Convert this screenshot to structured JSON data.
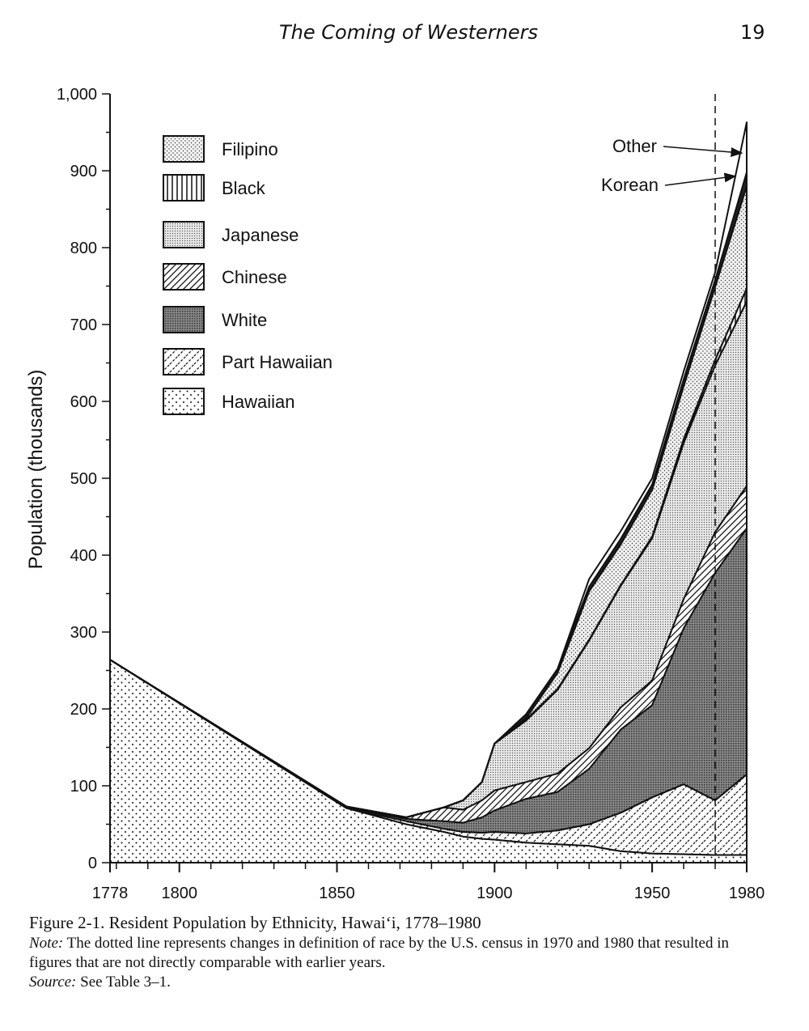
{
  "page": {
    "running_title": "The Coming of Westerners",
    "page_number": "19"
  },
  "chart_data": {
    "type": "area",
    "ylabel": "Population (thousands)",
    "ylim": [
      0,
      1000
    ],
    "yticks": [
      0,
      100,
      200,
      300,
      400,
      500,
      600,
      700,
      800,
      900,
      1000
    ],
    "ytick_labels": [
      "0",
      "100",
      "200",
      "300",
      "400",
      "500",
      "600",
      "700",
      "800",
      "900",
      "1,000"
    ],
    "xlim": [
      1778,
      1980
    ],
    "xtick_labels": [
      "1778",
      "1800",
      "1850",
      "1900",
      "1950",
      "1980"
    ],
    "xtick_values": [
      1778,
      1800,
      1850,
      1900,
      1950,
      1980
    ],
    "census_break_year": 1970,
    "legend": [
      "Filipino",
      "Black",
      "Japanese",
      "Chinese",
      "White",
      "Part Hawaiian",
      "Hawaiian"
    ],
    "legend_position": "top-left",
    "annotations": [
      "Other",
      "Korean"
    ],
    "x": [
      1778,
      1853,
      1872,
      1884,
      1890,
      1896,
      1900,
      1910,
      1920,
      1930,
      1940,
      1950,
      1960,
      1970,
      1980
    ],
    "series": [
      {
        "name": "Hawaiian",
        "values": [
          264,
          71,
          50,
          40,
          34,
          31,
          30,
          26,
          24,
          22,
          15,
          12,
          11,
          10,
          10
        ]
      },
      {
        "name": "Part Hawaiian",
        "values": [
          0,
          0,
          4,
          4,
          6,
          8,
          10,
          12,
          18,
          28,
          50,
          73,
          91,
          71,
          105
        ]
      },
      {
        "name": "White",
        "values": [
          0,
          1,
          3,
          10,
          12,
          20,
          28,
          45,
          50,
          72,
          108,
          120,
          203,
          296,
          320
        ]
      },
      {
        "name": "Chinese",
        "values": [
          0,
          1,
          2,
          18,
          17,
          22,
          26,
          22,
          24,
          27,
          29,
          32,
          38,
          53,
          55
        ]
      },
      {
        "name": "Japanese",
        "values": [
          0,
          0,
          0,
          0,
          12,
          24,
          61,
          80,
          109,
          140,
          158,
          185,
          203,
          217,
          240
        ]
      },
      {
        "name": "Black",
        "values": [
          0,
          0,
          0,
          0,
          0,
          0,
          0,
          1,
          1,
          1,
          1,
          2,
          5,
          7,
          17
        ]
      },
      {
        "name": "Filipino",
        "values": [
          0,
          0,
          0,
          0,
          0,
          0,
          0,
          2,
          21,
          63,
          53,
          61,
          69,
          95,
          133
        ]
      },
      {
        "name": "Korean",
        "values": [
          0,
          0,
          0,
          0,
          0,
          0,
          0,
          5,
          5,
          6,
          7,
          7,
          9,
          9,
          18
        ]
      },
      {
        "name": "Other",
        "values": [
          0,
          0,
          0,
          0,
          0,
          0,
          0,
          0,
          0,
          10,
          10,
          8,
          10,
          10,
          65
        ]
      }
    ]
  },
  "caption": {
    "title": "Figure 2-1. Resident Population by Ethnicity, Hawai‘i, 1778–1980",
    "note_label": "Note:",
    "note_text": " The dotted line represents changes in definition of race by the U.S. census in 1970 and 1980 that resulted in figures that are not directly comparable with earlier years.",
    "source_label": "Source:",
    "source_text": " See Table 3–1."
  }
}
